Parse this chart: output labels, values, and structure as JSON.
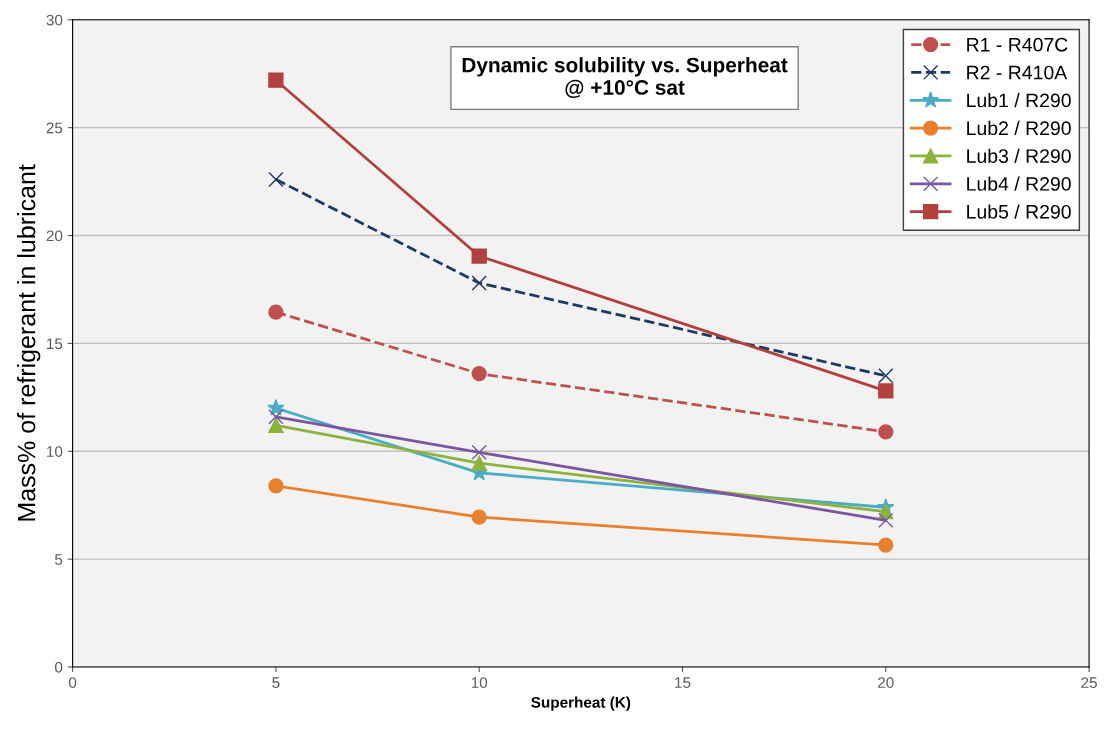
{
  "chart_data": {
    "type": "line",
    "title": "Dynamic solubility vs. Superheat\n@ +10°C sat",
    "xlabel": "Superheat (K)",
    "ylabel": "Mass% of refrigerant in lubricant",
    "x": [
      5,
      10,
      20
    ],
    "xlim": [
      0,
      25
    ],
    "xticks": [
      0,
      5,
      10,
      15,
      20,
      25
    ],
    "ylim": [
      0,
      30
    ],
    "yticks": [
      0,
      5,
      10,
      15,
      20,
      25,
      30
    ],
    "grid": "y",
    "legend": "top right",
    "series": [
      {
        "name": "R1 - R407C",
        "color": "#c0504d",
        "marker": "circle",
        "line_style": "dashed",
        "values": [
          16.45,
          13.6,
          10.9
        ]
      },
      {
        "name": "R2 - R410A",
        "color": "#1f3864",
        "marker": "cross",
        "line_style": "dashed",
        "values": [
          22.6,
          17.8,
          13.5
        ]
      },
      {
        "name": "Lub1 / R290",
        "color": "#4bacc6",
        "marker": "star",
        "line_style": "solid",
        "values": [
          12.0,
          9.0,
          7.4
        ]
      },
      {
        "name": "Lub2 / R290",
        "color": "#e8812f",
        "marker": "circle",
        "line_style": "solid",
        "values": [
          8.4,
          6.95,
          5.65
        ]
      },
      {
        "name": "Lub3 / R290",
        "color": "#8db33f",
        "marker": "triangle",
        "line_style": "solid",
        "values": [
          11.2,
          9.45,
          7.2
        ]
      },
      {
        "name": "Lub4 / R290",
        "color": "#7a57a0",
        "marker": "cross",
        "line_style": "solid",
        "values": [
          11.6,
          9.95,
          6.8
        ]
      },
      {
        "name": "Lub5 / R290",
        "color": "#b2403c",
        "marker": "square",
        "line_style": "solid",
        "values": [
          27.2,
          19.05,
          12.8
        ]
      }
    ]
  }
}
